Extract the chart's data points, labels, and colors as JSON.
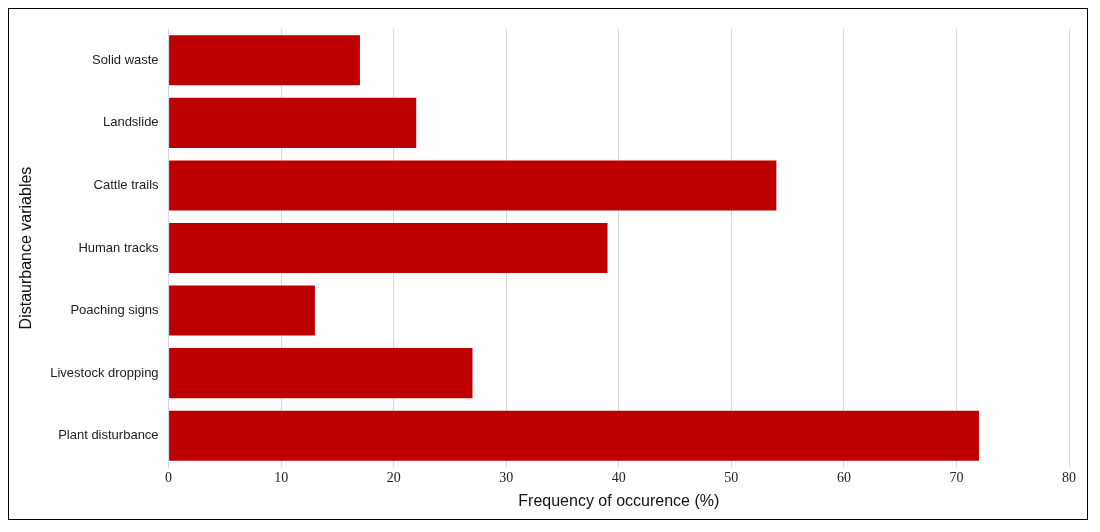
{
  "chart_data": {
    "type": "bar",
    "orientation": "horizontal",
    "xlabel": "Frequency of occurence (%)",
    "ylabel": "Distaurbance variables",
    "categories": [
      "Solid waste",
      "Landslide",
      "Cattle trails",
      "Human tracks",
      "Poaching signs",
      "Livestock dropping",
      "Plant disturbance"
    ],
    "values": [
      17,
      22,
      54,
      39,
      13,
      27,
      72
    ],
    "color": "#bc0000",
    "xlim": [
      0,
      80
    ],
    "xticks": [
      0,
      10,
      20,
      30,
      40,
      50,
      60,
      70,
      80
    ],
    "grid": "x",
    "legend": false
  }
}
